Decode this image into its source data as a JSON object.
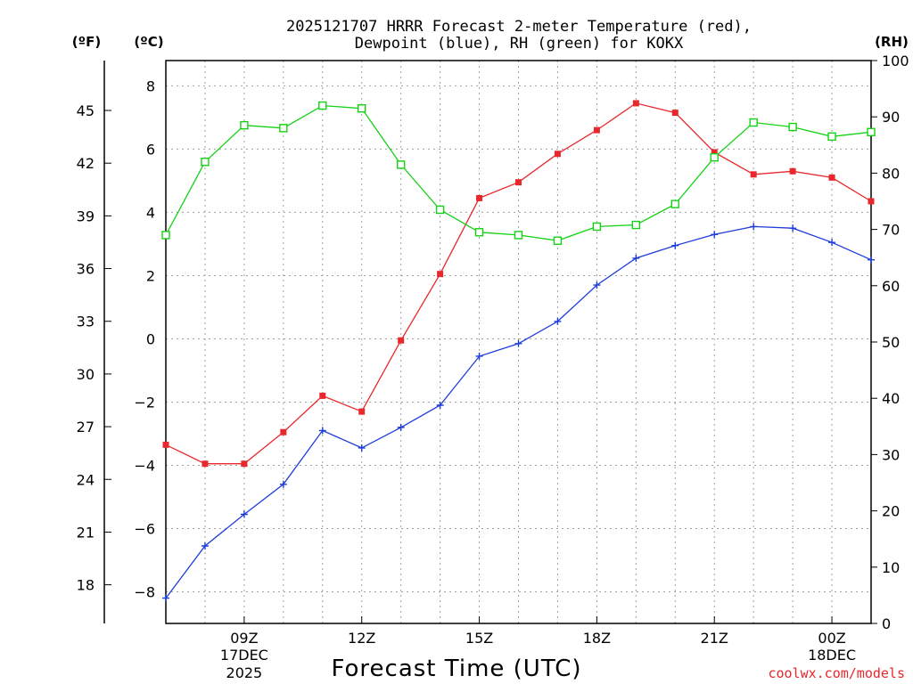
{
  "chart_data": {
    "type": "line",
    "title_line1": "2025121707 HRRR Forecast 2-meter Temperature (red),",
    "title_line2": "Dewpoint (blue), RH (green) for KOKX",
    "xlabel": "Forecast Time (UTC)",
    "credit": "coolwx.com/models",
    "unit_f": "(ºF)",
    "unit_c": "(ºC)",
    "unit_rh": "(RH)",
    "x_hours": [
      7,
      8,
      9,
      10,
      11,
      12,
      13,
      14,
      15,
      16,
      17,
      18,
      19,
      20,
      21,
      22,
      23,
      24,
      25
    ],
    "x_ticks": [
      {
        "hour": 9,
        "label": "09Z",
        "sub1": "17DEC",
        "sub2": "2025"
      },
      {
        "hour": 12,
        "label": "12Z",
        "sub1": "",
        "sub2": ""
      },
      {
        "hour": 15,
        "label": "15Z",
        "sub1": "",
        "sub2": ""
      },
      {
        "hour": 18,
        "label": "18Z",
        "sub1": "",
        "sub2": ""
      },
      {
        "hour": 21,
        "label": "21Z",
        "sub1": "",
        "sub2": ""
      },
      {
        "hour": 24,
        "label": "00Z",
        "sub1": "18DEC",
        "sub2": ""
      }
    ],
    "xlim": [
      7,
      25
    ],
    "ylim_c": [
      -9,
      8.8
    ],
    "ylim_rh": [
      0,
      100
    ],
    "c_ticks": [
      "-8",
      "-6",
      "-4",
      "-2",
      "0",
      "2",
      "4",
      "6",
      "8"
    ],
    "f_ticks": [
      "18",
      "21",
      "24",
      "27",
      "30",
      "33",
      "36",
      "39",
      "42",
      "45"
    ],
    "rh_ticks": [
      "0",
      "10",
      "20",
      "30",
      "40",
      "50",
      "60",
      "70",
      "80",
      "90",
      "100"
    ],
    "series": [
      {
        "name": "Temperature",
        "unit": "C",
        "color": "#e8282c",
        "marker": "filled-square",
        "values": [
          -3.35,
          -3.95,
          -3.95,
          -2.95,
          -1.8,
          -2.3,
          -0.05,
          2.05,
          4.45,
          4.95,
          5.85,
          6.6,
          7.45,
          7.15,
          5.9,
          5.2,
          5.3,
          5.1,
          4.35
        ]
      },
      {
        "name": "Dewpoint",
        "unit": "C",
        "color": "#1e3cdc",
        "marker": "plus",
        "values": [
          -8.2,
          -6.55,
          -5.55,
          -4.6,
          -2.9,
          -3.45,
          -2.8,
          -2.1,
          -0.55,
          -0.15,
          0.55,
          1.7,
          2.55,
          2.95,
          3.3,
          3.55,
          3.5,
          3.05,
          2.5
        ]
      },
      {
        "name": "RH",
        "unit": "%",
        "color": "#14d214",
        "marker": "open-square",
        "values": [
          69,
          82,
          88.5,
          88,
          92,
          91.5,
          81.5,
          73.5,
          69.5,
          69,
          68,
          70.5,
          70.8,
          74.5,
          82.8,
          89,
          88.2,
          86.5,
          87.3
        ]
      }
    ]
  }
}
